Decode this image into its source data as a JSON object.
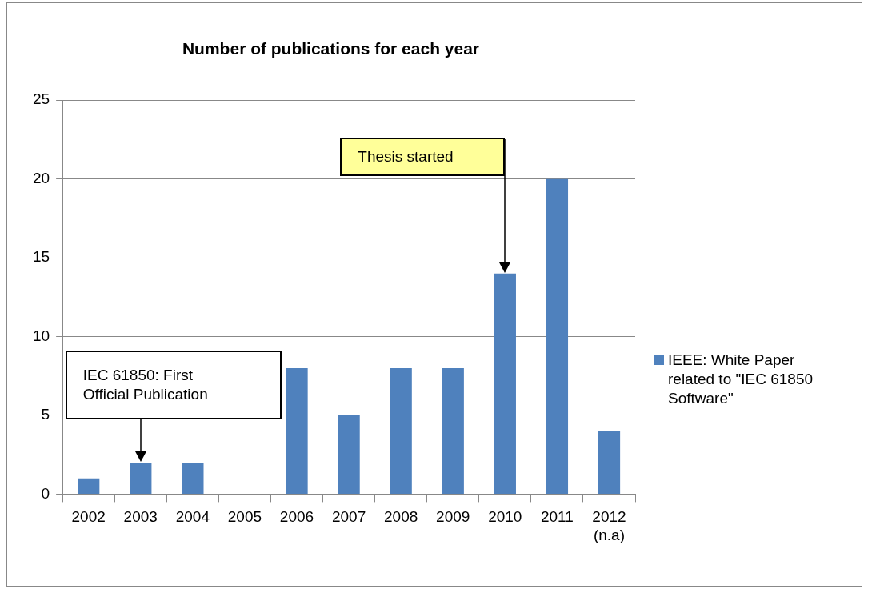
{
  "chart_data": {
    "type": "bar",
    "title": "Number of publications for each year",
    "categories": [
      "2002",
      "2003",
      "2004",
      "2005",
      "2006",
      "2007",
      "2008",
      "2009",
      "2010",
      "2011",
      "2012\n(n.a)"
    ],
    "series": [
      {
        "name": "IEEE: White Paper related to \"IEC 61850 Software\"",
        "color": "#4f81bd",
        "values": [
          1,
          2,
          2,
          0,
          8,
          5,
          8,
          8,
          14,
          20,
          4
        ]
      }
    ],
    "ylim": [
      0,
      25
    ],
    "yticks": [
      0,
      5,
      10,
      15,
      20,
      25
    ],
    "grid": "y",
    "legend": "right",
    "annotations": [
      "IEC 61850: First Official Publication",
      "Thesis started"
    ]
  }
}
